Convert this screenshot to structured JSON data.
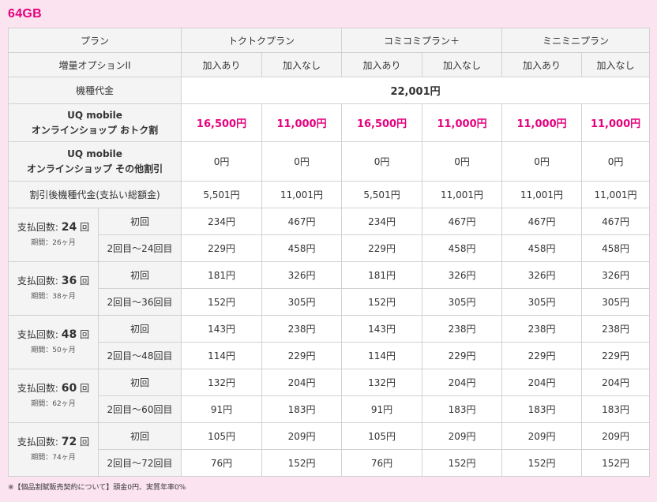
{
  "capacity": "64GB",
  "labels": {
    "plan": "プラン",
    "option": "増量オプションII",
    "device_price": "機種代金",
    "discount1_line1": "UQ mobile",
    "discount1_line2": "オンラインショップ おトク割",
    "discount2_line1": "UQ mobile",
    "discount2_line2": "オンラインショップ その他割引",
    "after_discount": "割引後機種代金(支払い総額金)"
  },
  "plans": [
    "トクトクプラン",
    "コミコミプラン＋",
    "ミニミニプラン"
  ],
  "option_values": [
    "加入あり",
    "加入なし",
    "加入あり",
    "加入なし",
    "加入あり",
    "加入なし"
  ],
  "device_price_value": "22,001円",
  "discount1_values": [
    "16,500円",
    "11,000円",
    "16,500円",
    "11,000円",
    "11,000円",
    "11,000円"
  ],
  "discount2_values": [
    "0円",
    "0円",
    "0円",
    "0円",
    "0円",
    "0円"
  ],
  "after_discount_values": [
    "5,501円",
    "11,001円",
    "5,501円",
    "11,001円",
    "11,001円",
    "11,001円"
  ],
  "payments": [
    {
      "prefix": "支払回数:",
      "count": "24",
      "suffix": "回",
      "period": "期間：26ヶ月",
      "first_label": "初回",
      "rest_label": "2回目〜24回目",
      "first": [
        "234円",
        "467円",
        "234円",
        "467円",
        "467円",
        "467円"
      ],
      "rest": [
        "229円",
        "458円",
        "229円",
        "458円",
        "458円",
        "458円"
      ]
    },
    {
      "prefix": "支払回数:",
      "count": "36",
      "suffix": "回",
      "period": "期間：38ヶ月",
      "first_label": "初回",
      "rest_label": "2回目〜36回目",
      "first": [
        "181円",
        "326円",
        "181円",
        "326円",
        "326円",
        "326円"
      ],
      "rest": [
        "152円",
        "305円",
        "152円",
        "305円",
        "305円",
        "305円"
      ]
    },
    {
      "prefix": "支払回数:",
      "count": "48",
      "suffix": "回",
      "period": "期間：50ヶ月",
      "first_label": "初回",
      "rest_label": "2回目〜48回目",
      "first": [
        "143円",
        "238円",
        "143円",
        "238円",
        "238円",
        "238円"
      ],
      "rest": [
        "114円",
        "229円",
        "114円",
        "229円",
        "229円",
        "229円"
      ]
    },
    {
      "prefix": "支払回数:",
      "count": "60",
      "suffix": "回",
      "period": "期間：62ヶ月",
      "first_label": "初回",
      "rest_label": "2回目〜60回目",
      "first": [
        "132円",
        "204円",
        "132円",
        "204円",
        "204円",
        "204円"
      ],
      "rest": [
        "91円",
        "183円",
        "91円",
        "183円",
        "183円",
        "183円"
      ]
    },
    {
      "prefix": "支払回数:",
      "count": "72",
      "suffix": "回",
      "period": "期間：74ヶ月",
      "first_label": "初回",
      "rest_label": "2回目〜72回目",
      "first": [
        "105円",
        "209円",
        "105円",
        "209円",
        "209円",
        "209円"
      ],
      "rest": [
        "76円",
        "152円",
        "76円",
        "152円",
        "152円",
        "152円"
      ]
    }
  ],
  "footnote": "※【個品割賦販売契約について】頭金0円、実質年率0%",
  "colors": {
    "accent": "#e6007e",
    "page_bg": "#fbe3ef",
    "header_bg": "#f4f4f4",
    "border": "#d2d2d2"
  }
}
